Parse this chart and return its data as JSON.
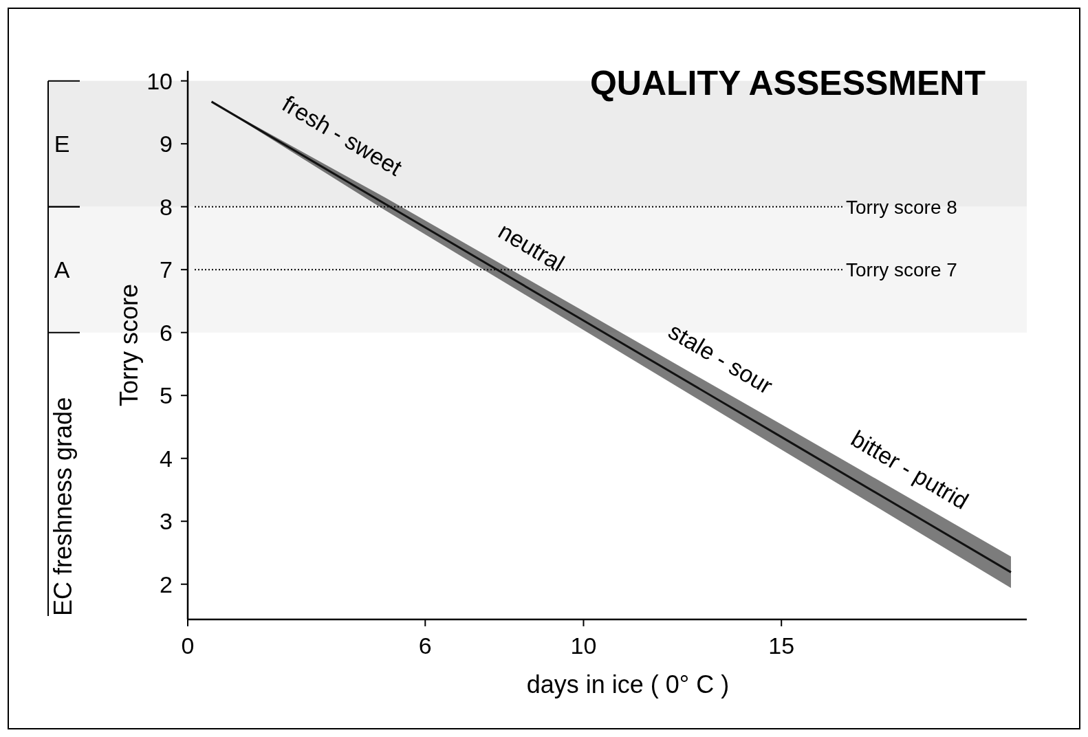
{
  "chart_data": {
    "type": "line",
    "title": "QUALITY ASSESSMENT",
    "xlabel": "days in ice ( 0° C )",
    "ylabel": "Torry score",
    "y2label": "EC freshness grade",
    "xlim": [
      0,
      21.2
    ],
    "xticks": [
      0,
      6,
      10,
      15
    ],
    "ylim": [
      1.44,
      10.16
    ],
    "yticks": [
      2,
      3,
      4,
      5,
      6,
      7,
      8,
      9,
      10
    ],
    "bands": [
      {
        "axis": "y",
        "from": 8,
        "to": 10,
        "label": "E",
        "color": "#ececec"
      },
      {
        "axis": "y",
        "from": 6,
        "to": 8,
        "label": "A",
        "color": "#f5f5f5"
      }
    ],
    "grid": false,
    "marker": "none",
    "line_style": "solid",
    "series": [
      {
        "color": "#111111",
        "x": [
          0.6,
          5,
          10,
          15,
          20.8
        ],
        "values": [
          9.67,
          8.04,
          6.19,
          4.34,
          2.19
        ],
        "lower": [
          9.67,
          7.94,
          6.04,
          4.14,
          1.94
        ],
        "upper": [
          9.67,
          8.14,
          6.34,
          4.54,
          2.44
        ]
      }
    ],
    "ref_lines": [
      {
        "axis": "y",
        "value": 8,
        "label": "Torry score 8",
        "line_style": "dotted",
        "color": "#000000"
      },
      {
        "axis": "y",
        "value": 7,
        "label": "Torry score 7",
        "line_style": "dotted",
        "color": "#000000"
      }
    ],
    "annotations": [
      "fresh - sweet",
      "neutral",
      "stale - sour",
      "bitter - putrid"
    ]
  }
}
